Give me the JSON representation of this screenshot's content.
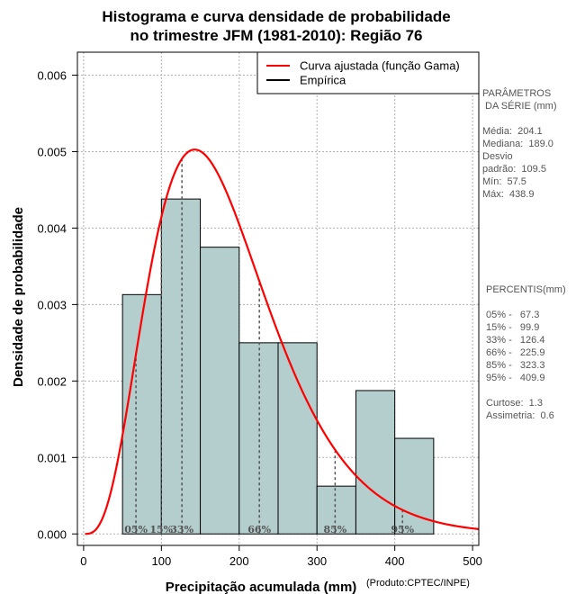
{
  "chart_data": {
    "type": "bar",
    "title_lines": [
      "Histograma e curva densidade de probabilidade",
      "no trimestre JFM (1981-2010): Região 76"
    ],
    "xlabel": "Precipitação acumulada (mm)",
    "ylabel": "Densidade de probabilidade",
    "credit": "(Produto:CPTEC/INPE)",
    "xlim": [
      -8,
      508
    ],
    "ylim": [
      -0.00015,
      0.0063
    ],
    "x_ticks": [
      0,
      100,
      200,
      300,
      400,
      500
    ],
    "x_tick_labels": [
      "0",
      "100",
      "200",
      "300",
      "400",
      "500"
    ],
    "y_ticks": [
      0,
      0.001,
      0.002,
      0.003,
      0.004,
      0.005,
      0.006
    ],
    "y_tick_labels": [
      "0.000",
      "0.001",
      "0.002",
      "0.003",
      "0.004",
      "0.005",
      "0.006"
    ],
    "grid": true,
    "bins": [
      {
        "x0": 50,
        "x1": 100,
        "density": 0.00313
      },
      {
        "x0": 100,
        "x1": 150,
        "density": 0.00438
      },
      {
        "x0": 150,
        "x1": 200,
        "density": 0.00375
      },
      {
        "x0": 200,
        "x1": 250,
        "density": 0.0025
      },
      {
        "x0": 250,
        "x1": 300,
        "density": 0.0025
      },
      {
        "x0": 300,
        "x1": 350,
        "density": 0.000625
      },
      {
        "x0": 350,
        "x1": 400,
        "density": 0.001875
      },
      {
        "x0": 400,
        "x1": 450,
        "density": 0.00125
      }
    ],
    "gamma_fit": {
      "shape": 4.4,
      "scale": 42.0,
      "x_range": [
        2,
        508
      ]
    },
    "percentile_lines": [
      {
        "label": "05%",
        "value": 67.3
      },
      {
        "label": "15%",
        "value": 99.9
      },
      {
        "label": "33%",
        "value": 126.4
      },
      {
        "label": "66%",
        "value": 225.9
      },
      {
        "label": "85%",
        "value": 323.3
      },
      {
        "label": "95%",
        "value": 409.9
      }
    ],
    "legend": [
      {
        "label": "Curva ajustada (função Gama)",
        "color": "#ff0000"
      },
      {
        "label": "Empírica",
        "color": "#000000"
      }
    ],
    "legend_position": "top-right",
    "colors": {
      "bar_fill": "#b4cdcd",
      "curve": "#ff0000",
      "grid": "#b0b0b0",
      "percentile": "#555555"
    }
  },
  "side_panel": {
    "params_lines": [
      "PARÂMETROS",
      " DA SÉRIE (mm)",
      "",
      "Média:  204.1",
      "Mediana:  189.0",
      "Desvio",
      "padrão:  109.5",
      "Mín:  57.5",
      "Máx:  438.9"
    ],
    "percentis_lines": [
      "PERCENTIS(mm)",
      "",
      "05% -   67.3",
      "15% -   99.9",
      "33% -   126.4",
      "66% -   225.9",
      "85% -   323.3",
      "95% -   409.9",
      "",
      "Curtose:  1.3",
      "Assimetria:  0.6"
    ]
  }
}
